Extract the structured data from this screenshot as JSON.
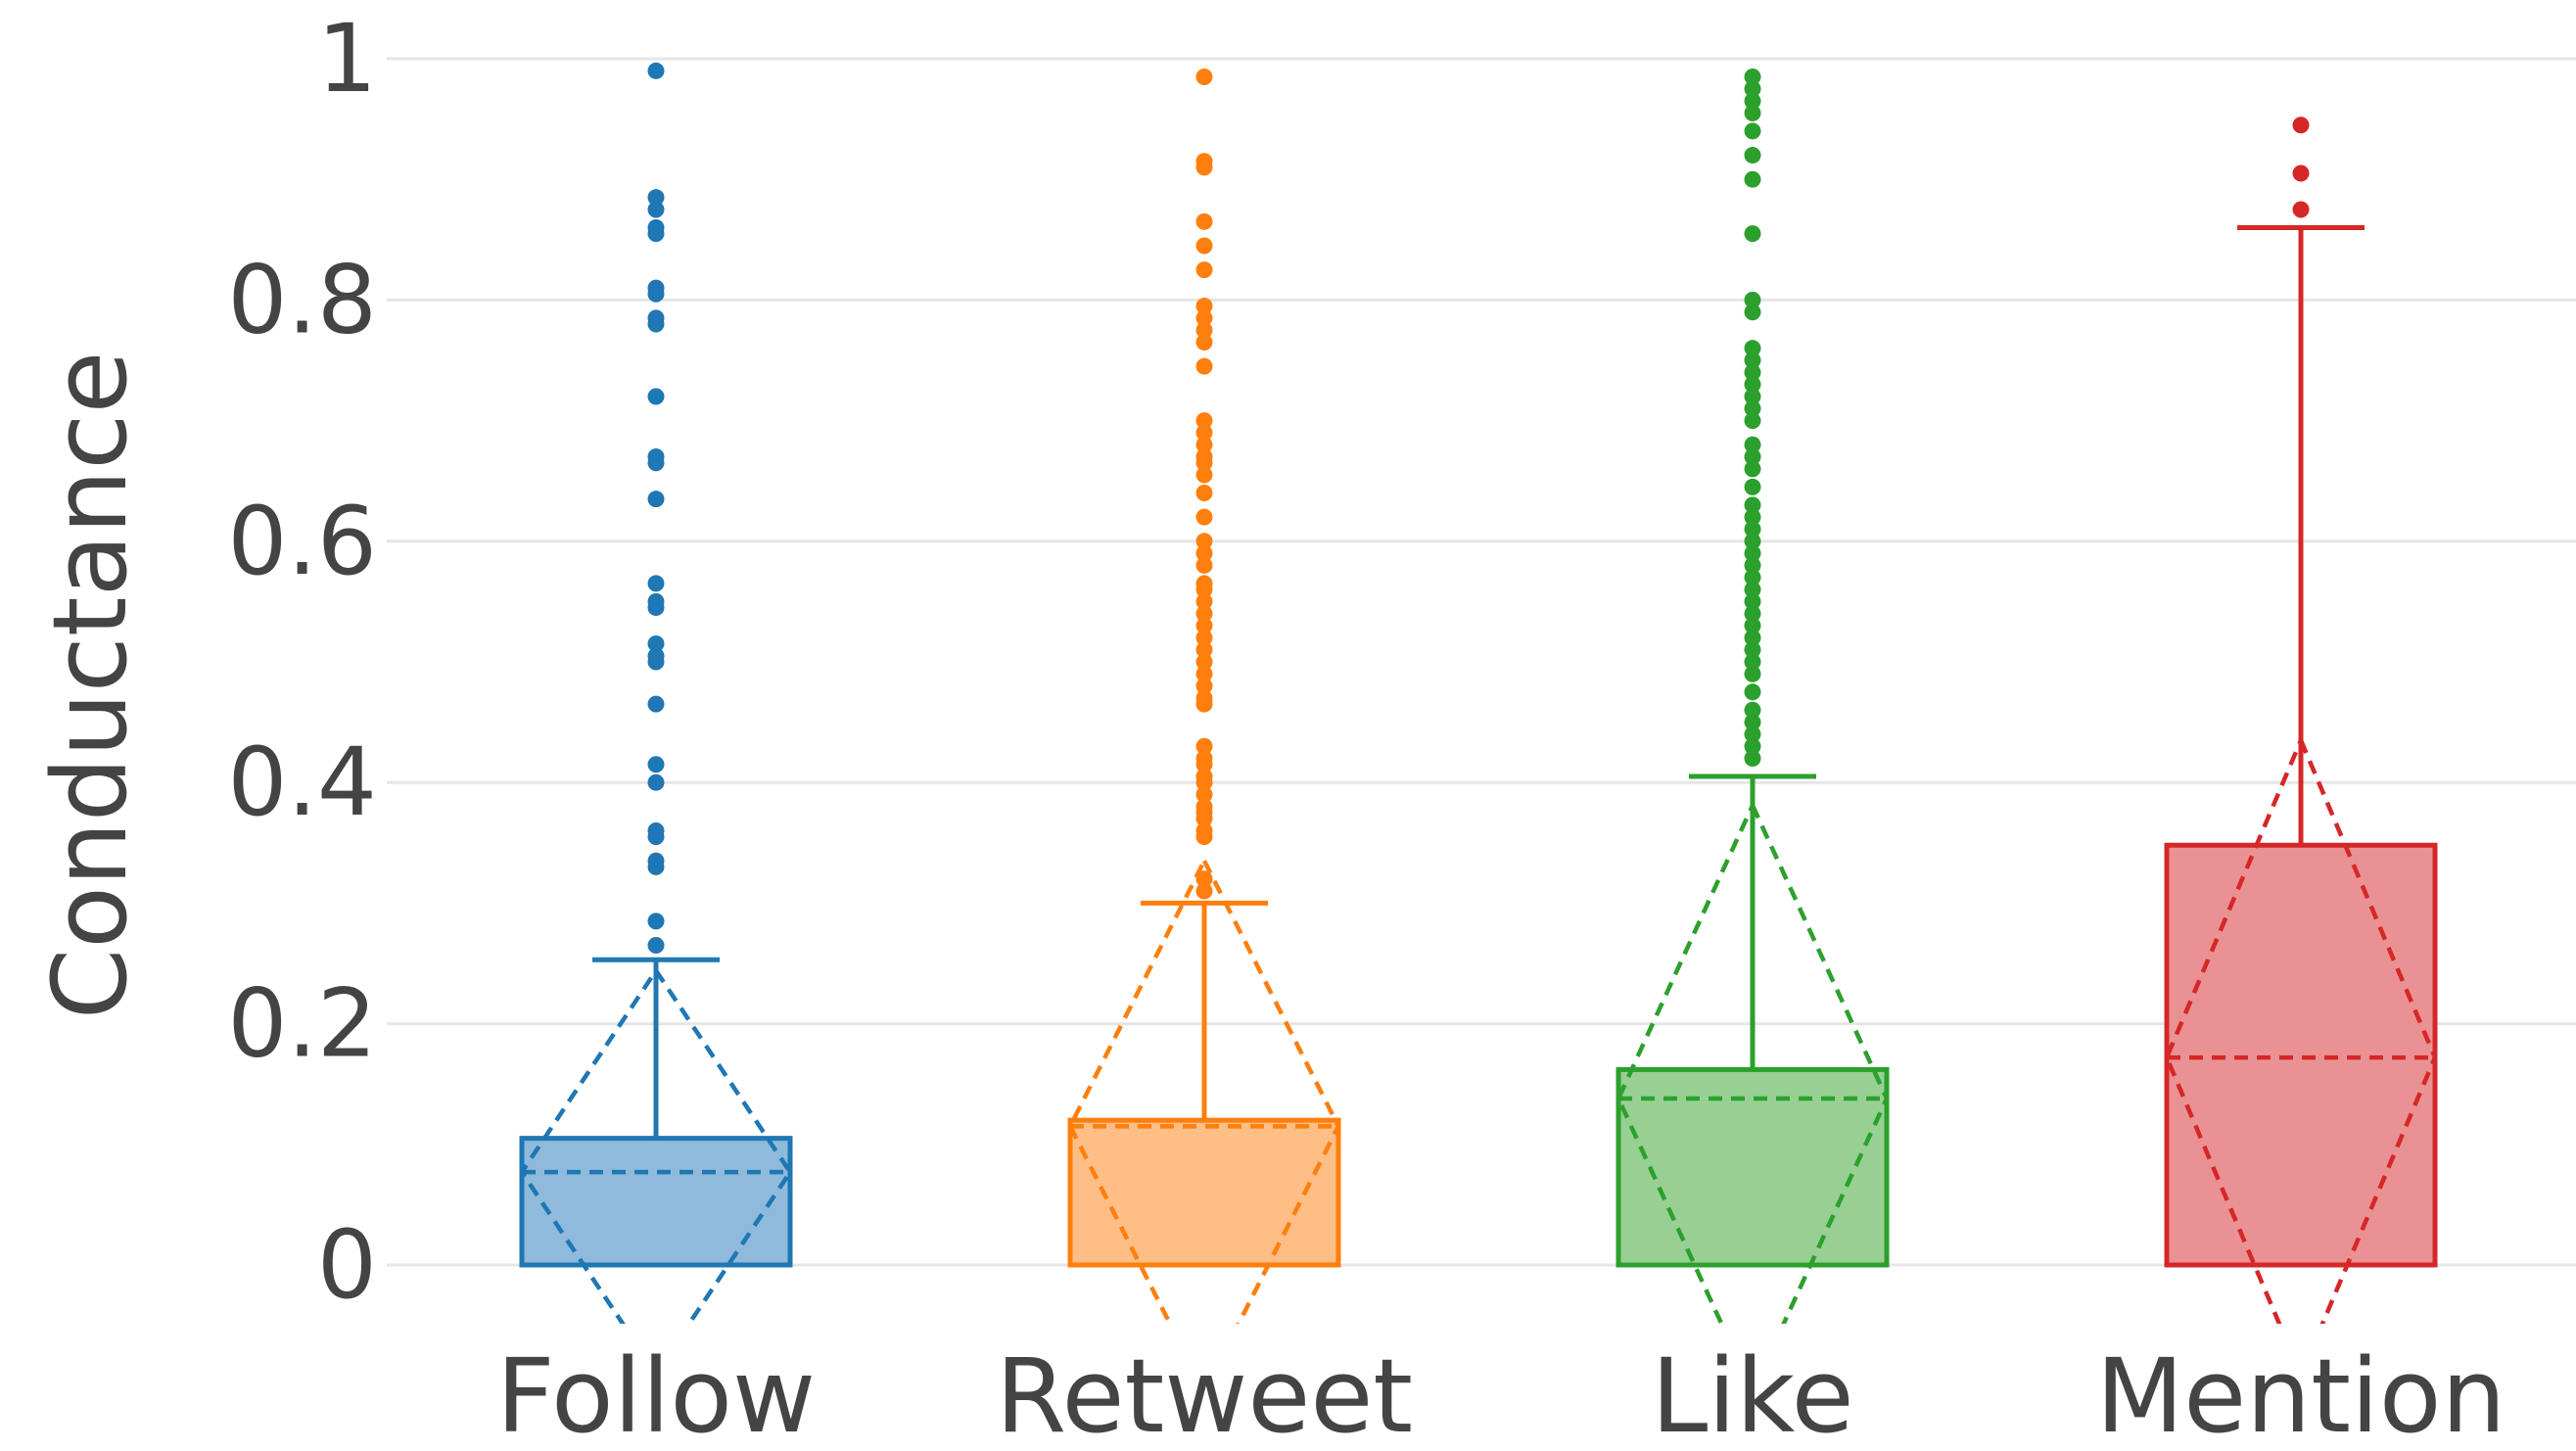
{
  "chart_data": {
    "type": "box",
    "title": "",
    "xlabel": "",
    "ylabel": "Conductance",
    "ylim": [
      -0.05,
      1
    ],
    "yticks": [
      {
        "value": 0,
        "label": "0"
      },
      {
        "value": 0.2,
        "label": "0.2"
      },
      {
        "value": 0.4,
        "label": "0.4"
      },
      {
        "value": 0.6,
        "label": "0.6"
      },
      {
        "value": 0.8,
        "label": "0.8"
      },
      {
        "value": 1,
        "label": "1"
      }
    ],
    "grid": true,
    "legend": "none",
    "categories": [
      "Follow",
      "Retweet",
      "Like",
      "Mention"
    ],
    "series": [
      {
        "category": "Follow",
        "color": "#1f77b4",
        "fill": "#8fbadc",
        "q1": 0,
        "median": 0,
        "q3": 0.105,
        "lower_whisker": 0,
        "upper_whisker": 0.253,
        "mean": 0.077,
        "sd": 0.167,
        "outliers": [
          0.265,
          0.285,
          0.33,
          0.335,
          0.355,
          0.36,
          0.4,
          0.415,
          0.465,
          0.5,
          0.505,
          0.515,
          0.545,
          0.55,
          0.565,
          0.635,
          0.665,
          0.67,
          0.72,
          0.78,
          0.785,
          0.805,
          0.81,
          0.855,
          0.86,
          0.875,
          0.885,
          0.99
        ]
      },
      {
        "category": "Retweet",
        "color": "#ff7f0e",
        "fill": "#ffbe86",
        "q1": 0,
        "median": 0,
        "q3": 0.12,
        "lower_whisker": 0,
        "upper_whisker": 0.3,
        "mean": 0.115,
        "sd": 0.22,
        "outliers": [
          0.31,
          0.32,
          0.355,
          0.36,
          0.37,
          0.375,
          0.38,
          0.39,
          0.4,
          0.405,
          0.415,
          0.42,
          0.43,
          0.465,
          0.47,
          0.48,
          0.49,
          0.5,
          0.51,
          0.52,
          0.53,
          0.54,
          0.55,
          0.56,
          0.565,
          0.58,
          0.59,
          0.6,
          0.62,
          0.64,
          0.655,
          0.665,
          0.67,
          0.68,
          0.69,
          0.7,
          0.745,
          0.765,
          0.775,
          0.785,
          0.795,
          0.825,
          0.845,
          0.865,
          0.91,
          0.915,
          0.985
        ]
      },
      {
        "category": "Like",
        "color": "#2ca02c",
        "fill": "#98d094",
        "q1": 0,
        "median": 0,
        "q3": 0.162,
        "lower_whisker": 0,
        "upper_whisker": 0.405,
        "mean": 0.138,
        "sd": 0.243,
        "outliers": [
          0.42,
          0.43,
          0.44,
          0.45,
          0.46,
          0.475,
          0.49,
          0.5,
          0.51,
          0.52,
          0.53,
          0.54,
          0.55,
          0.56,
          0.57,
          0.58,
          0.59,
          0.6,
          0.61,
          0.62,
          0.63,
          0.645,
          0.66,
          0.67,
          0.68,
          0.7,
          0.71,
          0.72,
          0.73,
          0.74,
          0.75,
          0.76,
          0.79,
          0.8,
          0.855,
          0.9,
          0.92,
          0.94,
          0.955,
          0.965,
          0.975,
          0.985
        ]
      },
      {
        "category": "Mention",
        "color": "#d62728",
        "fill": "#ea9293",
        "q1": 0,
        "median": 0,
        "q3": 0.348,
        "lower_whisker": 0,
        "upper_whisker": 0.86,
        "mean": 0.172,
        "sd": 0.263,
        "outliers": [
          0.875,
          0.905,
          0.945
        ]
      }
    ]
  }
}
